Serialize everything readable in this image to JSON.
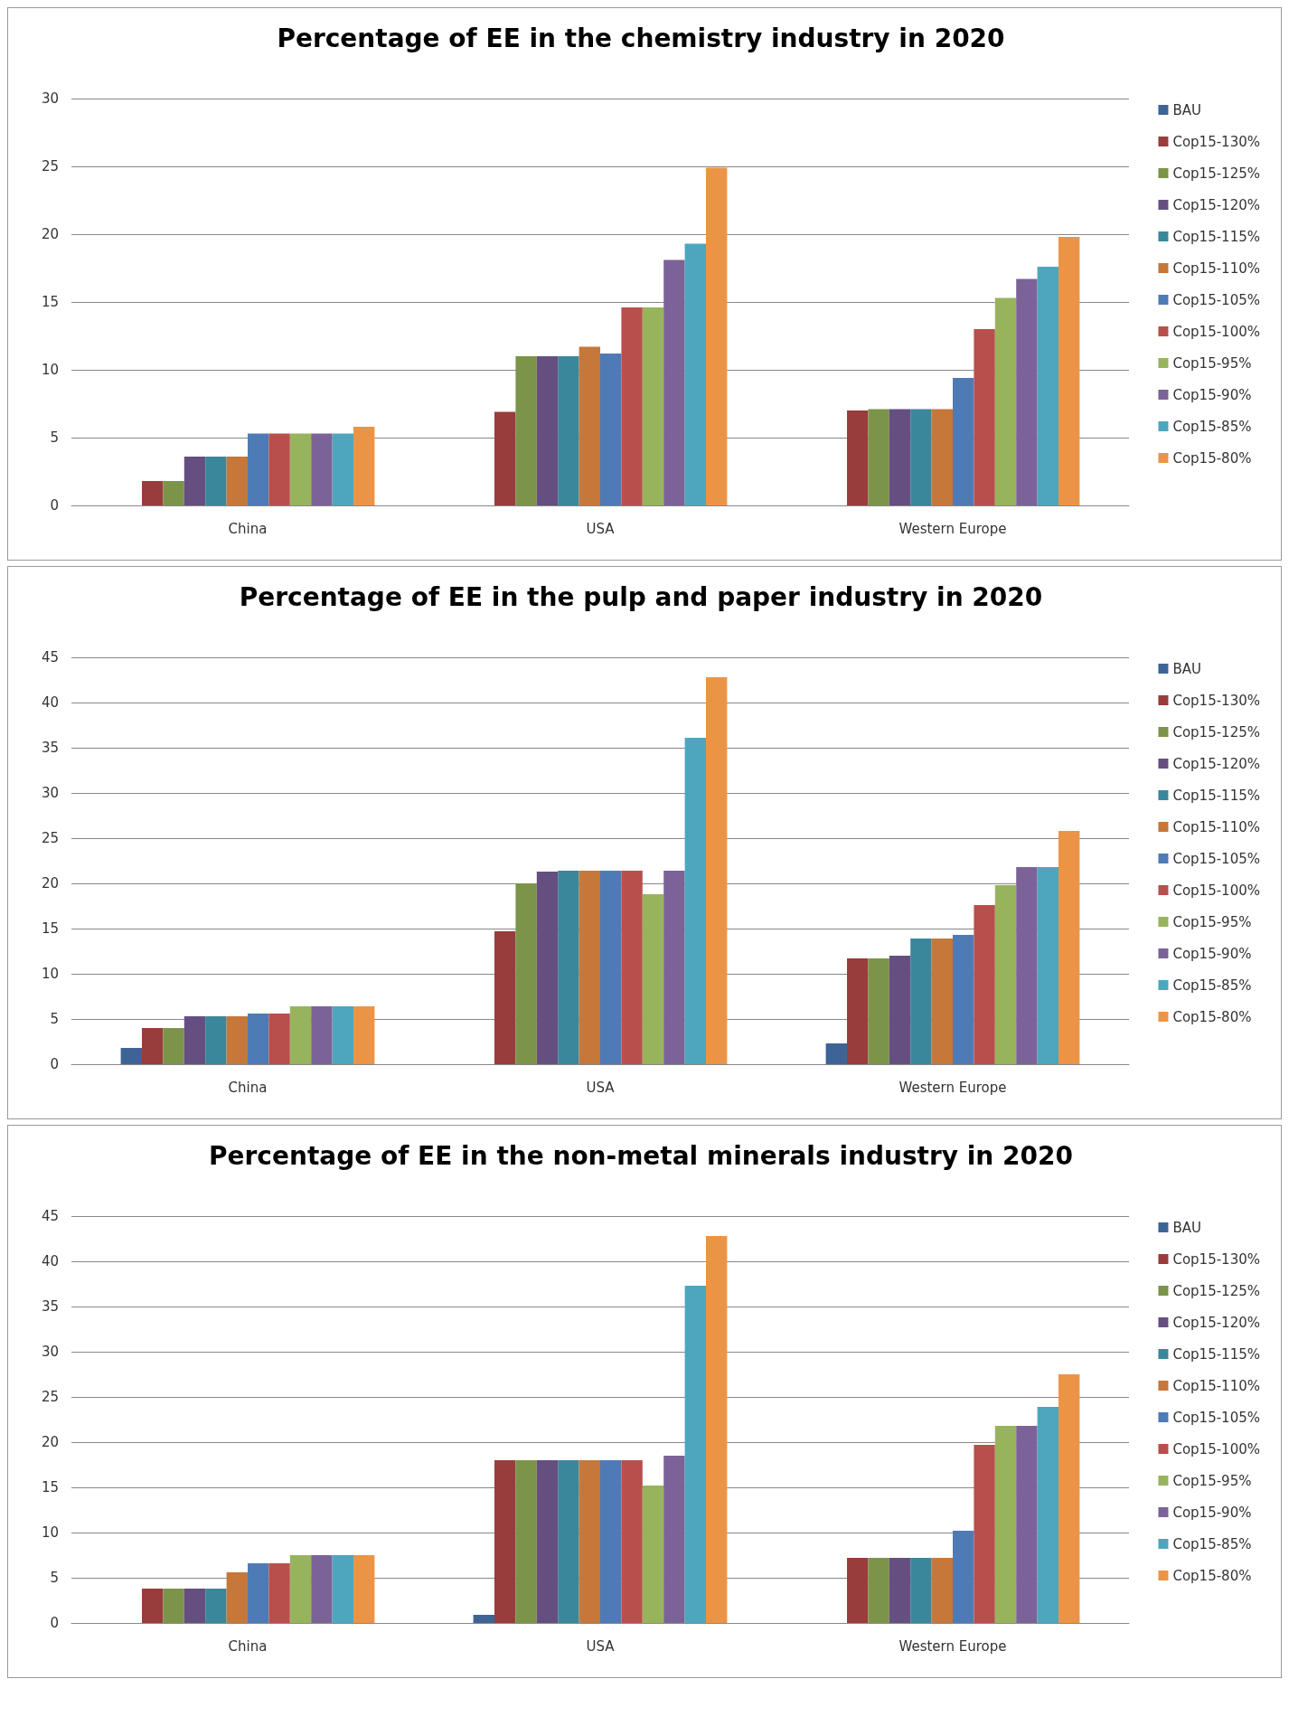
{
  "chart_data": [
    {
      "type": "bar",
      "title": "Percentage of EE in the chemistry industry in 2020",
      "categories": [
        "China",
        "USA",
        "Western Europe"
      ],
      "ylim": [
        0,
        30
      ],
      "yticks": [
        0,
        5,
        10,
        15,
        20,
        25,
        30
      ],
      "grid": "y",
      "legend": "right",
      "series": [
        {
          "name": "BAU",
          "color": "#3e6496",
          "values": [
            0,
            0,
            0
          ]
        },
        {
          "name": "Cop15-130%",
          "color": "#983d3b",
          "values": [
            1.8,
            6.9,
            7.0
          ]
        },
        {
          "name": "Cop15-125%",
          "color": "#7b9449",
          "values": [
            1.8,
            11,
            7.1
          ]
        },
        {
          "name": "Cop15-120%",
          "color": "#654f80",
          "values": [
            3.6,
            11,
            7.1
          ]
        },
        {
          "name": "Cop15-115%",
          "color": "#3a879b",
          "values": [
            3.6,
            11,
            7.1
          ]
        },
        {
          "name": "Cop15-110%",
          "color": "#c6773a",
          "values": [
            3.6,
            11.7,
            7.1
          ]
        },
        {
          "name": "Cop15-105%",
          "color": "#4e7bb5",
          "values": [
            5.3,
            11.2,
            9.4
          ]
        },
        {
          "name": "Cop15-100%",
          "color": "#b94f4d",
          "values": [
            5.3,
            14.6,
            13.0
          ]
        },
        {
          "name": "Cop15-95%",
          "color": "#97b45d",
          "values": [
            5.3,
            14.6,
            15.3
          ]
        },
        {
          "name": "Cop15-90%",
          "color": "#7b6398",
          "values": [
            5.3,
            18.1,
            16.7
          ]
        },
        {
          "name": "Cop15-85%",
          "color": "#4ea6be",
          "values": [
            5.3,
            19.3,
            17.6
          ]
        },
        {
          "name": "Cop15-80%",
          "color": "#ec9446",
          "values": [
            5.8,
            24.9,
            19.8
          ]
        }
      ]
    },
    {
      "type": "bar",
      "title": "Percentage of EE in the pulp and paper industry in 2020",
      "categories": [
        "China",
        "USA",
        "Western Europe"
      ],
      "ylim": [
        0,
        45
      ],
      "yticks": [
        0,
        5,
        10,
        15,
        20,
        25,
        30,
        35,
        40,
        45
      ],
      "grid": "y",
      "legend": "right",
      "series": [
        {
          "name": "BAU",
          "color": "#3e6496",
          "values": [
            1.8,
            0,
            2.3
          ]
        },
        {
          "name": "Cop15-130%",
          "color": "#983d3b",
          "values": [
            4.0,
            14.7,
            11.7
          ]
        },
        {
          "name": "Cop15-125%",
          "color": "#7b9449",
          "values": [
            4.0,
            20.0,
            11.7
          ]
        },
        {
          "name": "Cop15-120%",
          "color": "#654f80",
          "values": [
            5.3,
            21.3,
            12.0
          ]
        },
        {
          "name": "Cop15-115%",
          "color": "#3a879b",
          "values": [
            5.3,
            21.4,
            13.9
          ]
        },
        {
          "name": "Cop15-110%",
          "color": "#c6773a",
          "values": [
            5.3,
            21.4,
            13.9
          ]
        },
        {
          "name": "Cop15-105%",
          "color": "#4e7bb5",
          "values": [
            5.6,
            21.4,
            14.3
          ]
        },
        {
          "name": "Cop15-100%",
          "color": "#b94f4d",
          "values": [
            5.6,
            21.4,
            17.6
          ]
        },
        {
          "name": "Cop15-95%",
          "color": "#97b45d",
          "values": [
            6.4,
            18.8,
            19.8
          ]
        },
        {
          "name": "Cop15-90%",
          "color": "#7b6398",
          "values": [
            6.4,
            21.4,
            21.8
          ]
        },
        {
          "name": "Cop15-85%",
          "color": "#4ea6be",
          "values": [
            6.4,
            36.1,
            21.8
          ]
        },
        {
          "name": "Cop15-80%",
          "color": "#ec9446",
          "values": [
            6.4,
            42.8,
            25.8
          ]
        }
      ]
    },
    {
      "type": "bar",
      "title": "Percentage of EE in the non-metal minerals industry in 2020",
      "categories": [
        "China",
        "USA",
        "Western Europe"
      ],
      "ylim": [
        0,
        45
      ],
      "yticks": [
        0,
        5,
        10,
        15,
        20,
        25,
        30,
        35,
        40,
        45
      ],
      "grid": "y",
      "legend": "right",
      "series": [
        {
          "name": "BAU",
          "color": "#3e6496",
          "values": [
            0,
            0.9,
            0
          ]
        },
        {
          "name": "Cop15-130%",
          "color": "#983d3b",
          "values": [
            3.8,
            18,
            7.2
          ]
        },
        {
          "name": "Cop15-125%",
          "color": "#7b9449",
          "values": [
            3.8,
            18,
            7.2
          ]
        },
        {
          "name": "Cop15-120%",
          "color": "#654f80",
          "values": [
            3.8,
            18,
            7.2
          ]
        },
        {
          "name": "Cop15-115%",
          "color": "#3a879b",
          "values": [
            3.8,
            18,
            7.2
          ]
        },
        {
          "name": "Cop15-110%",
          "color": "#c6773a",
          "values": [
            5.6,
            18,
            7.2
          ]
        },
        {
          "name": "Cop15-105%",
          "color": "#4e7bb5",
          "values": [
            6.6,
            18,
            10.2
          ]
        },
        {
          "name": "Cop15-100%",
          "color": "#b94f4d",
          "values": [
            6.6,
            18,
            19.7
          ]
        },
        {
          "name": "Cop15-95%",
          "color": "#97b45d",
          "values": [
            7.5,
            15.2,
            21.8
          ]
        },
        {
          "name": "Cop15-90%",
          "color": "#7b6398",
          "values": [
            7.5,
            18.5,
            21.8
          ]
        },
        {
          "name": "Cop15-85%",
          "color": "#4ea6be",
          "values": [
            7.5,
            37.3,
            23.9
          ]
        },
        {
          "name": "Cop15-80%",
          "color": "#ec9446",
          "values": [
            7.5,
            42.8,
            27.5
          ]
        }
      ]
    }
  ]
}
